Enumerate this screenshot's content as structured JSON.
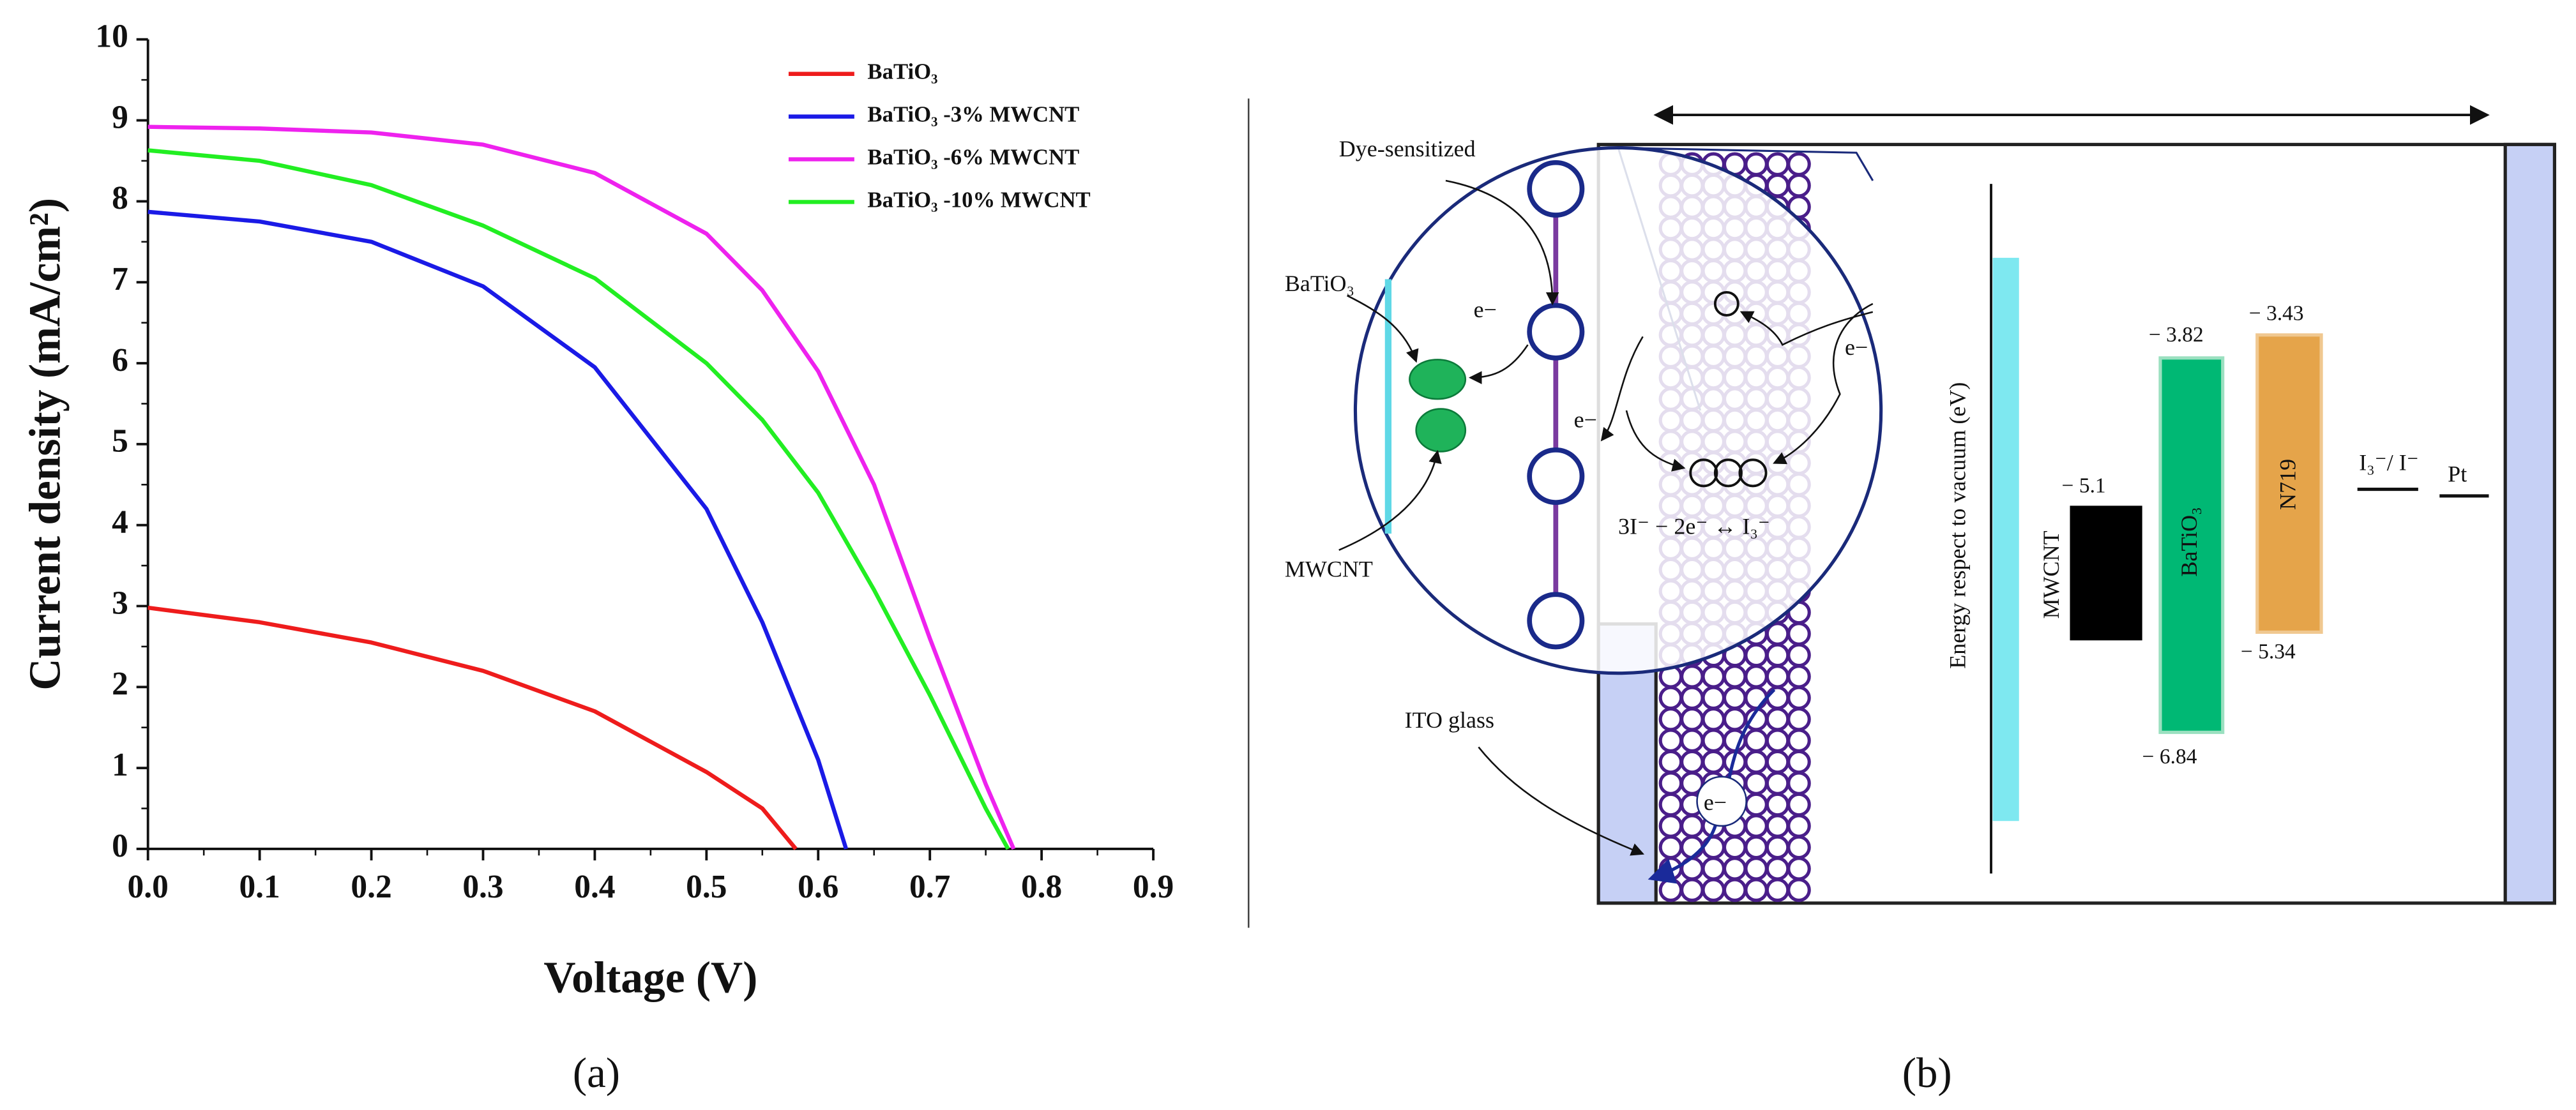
{
  "chart_data": {
    "type": "line",
    "xlabel": "Voltage (V)",
    "ylabel": "Current density (mA/cm²)",
    "xlim": [
      0,
      0.9
    ],
    "ylim": [
      0,
      10
    ],
    "xticks": [
      {
        "value": 0,
        "label": "0.0"
      },
      0.1,
      0.2,
      0.3,
      0.4,
      0.5,
      0.6,
      0.7,
      0.8,
      0.9
    ],
    "yticks": [
      0,
      1,
      2,
      3,
      4,
      5,
      6,
      7,
      8,
      9,
      10
    ],
    "legend": "upper right",
    "series": [
      {
        "name": "BaTiO₃",
        "color": "#ee1c1c",
        "x": [
          0,
          0.1,
          0.2,
          0.3,
          0.4,
          0.5,
          0.55,
          0.58
        ],
        "values": [
          2.98,
          2.8,
          2.55,
          2.2,
          1.7,
          0.95,
          0.5,
          0
        ]
      },
      {
        "name": "BaTiO₃ -3% MWCNT",
        "color": "#1a1ae6",
        "x": [
          0,
          0.1,
          0.2,
          0.3,
          0.4,
          0.5,
          0.55,
          0.6,
          0.625
        ],
        "values": [
          7.87,
          7.75,
          7.5,
          6.95,
          5.95,
          4.2,
          2.8,
          1.1,
          0
        ]
      },
      {
        "name": "BaTiO₃ -6% MWCNT",
        "color": "#ee22ee",
        "x": [
          0,
          0.1,
          0.2,
          0.3,
          0.4,
          0.5,
          0.55,
          0.6,
          0.65,
          0.7,
          0.75,
          0.775
        ],
        "values": [
          8.92,
          8.9,
          8.85,
          8.7,
          8.35,
          7.6,
          6.9,
          5.9,
          4.5,
          2.6,
          0.8,
          0
        ]
      },
      {
        "name": "BaTiO₃ -10% MWCNT",
        "color": "#22ee22",
        "x": [
          0,
          0.1,
          0.2,
          0.3,
          0.4,
          0.5,
          0.55,
          0.6,
          0.65,
          0.7,
          0.75,
          0.77
        ],
        "values": [
          8.63,
          8.5,
          8.2,
          7.7,
          7.05,
          6.0,
          5.3,
          4.4,
          3.2,
          1.9,
          0.5,
          0
        ]
      }
    ]
  },
  "panel_labels": [
    "(a)",
    "(b)"
  ],
  "diagram": {
    "dye_label": "Dye-sensitized",
    "batio3_label": "BaTiO₃",
    "mwcnt_label": "MWCNT",
    "electron": "e−",
    "reaction": "3I⁻ − 2e⁻ ↔ I₃⁻",
    "ito_label": "ITO glass",
    "energy_axis": "Energy respect to vacuum (eV)",
    "bars": [
      "MWCNT",
      "BaTiO₃",
      "N719"
    ],
    "levels": [
      "− 5.1",
      "− 3.82",
      "− 6.84",
      "− 3.43",
      "− 5.34"
    ],
    "redox": "I₃⁻/ I⁻",
    "counter": "Pt"
  }
}
